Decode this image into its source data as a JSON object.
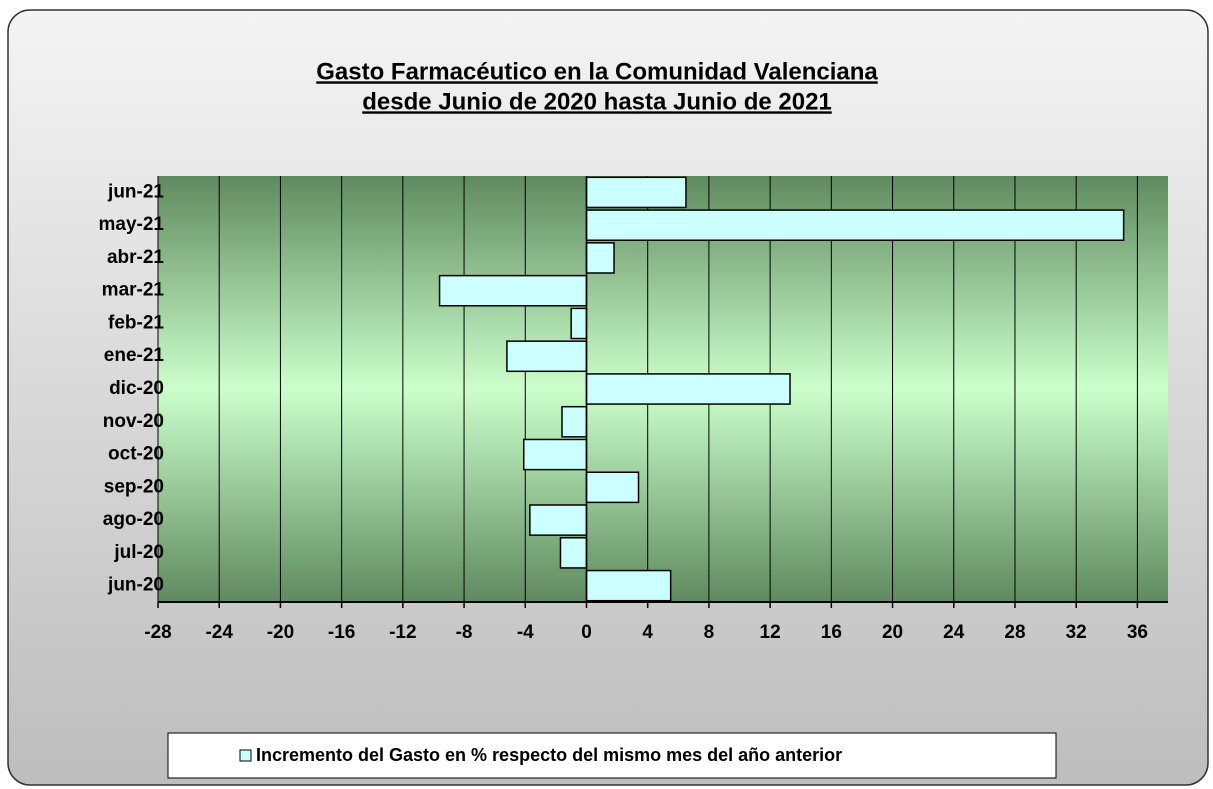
{
  "chart_data": {
    "type": "barh",
    "title": "Gasto Farmacéutico en la Comunidad Valenciana",
    "subtitle": "desde Junio de 2020 hasta Junio de 2021",
    "categories": [
      "jun-20",
      "jul-20",
      "ago-20",
      "sep-20",
      "oct-20",
      "nov-20",
      "dic-20",
      "ene-21",
      "feb-21",
      "mar-21",
      "abr-21",
      "may-21",
      "jun-21"
    ],
    "series": [
      {
        "name": "Incremento del Gasto en % respecto del mismo mes del año anterior",
        "color": "#ccffff",
        "values": [
          5.5,
          -1.7,
          -3.7,
          3.4,
          -4.1,
          -1.6,
          13.3,
          -5.2,
          -1.0,
          -9.6,
          1.8,
          35.1,
          6.5
        ]
      }
    ],
    "xlim": [
      -28,
      38
    ],
    "xticks": [
      -28,
      -24,
      -20,
      -16,
      -12,
      -8,
      -4,
      0,
      4,
      8,
      12,
      16,
      20,
      24,
      28,
      32,
      36
    ],
    "grid": true,
    "legend": "bottom"
  }
}
